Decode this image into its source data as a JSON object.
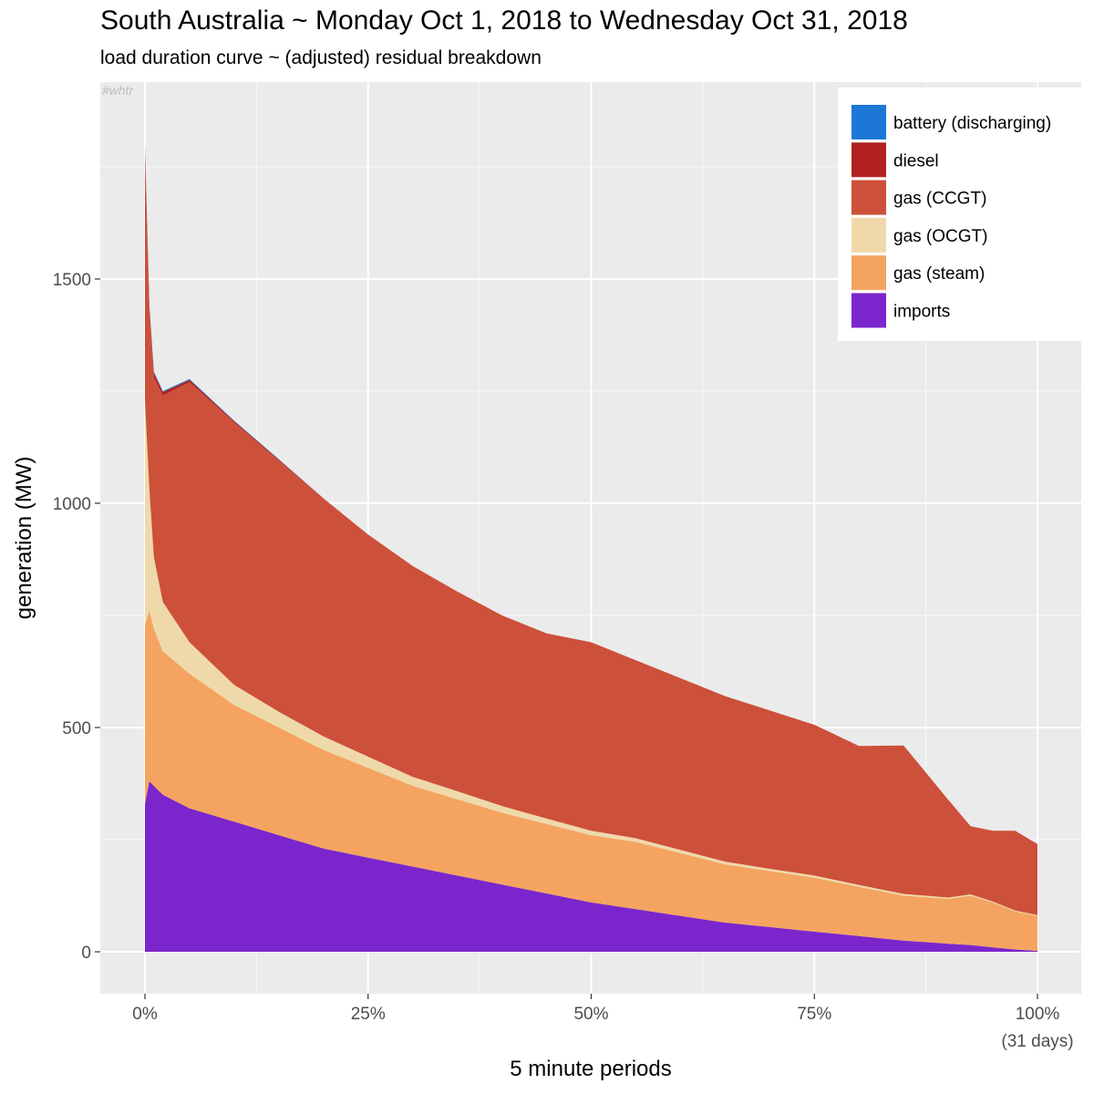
{
  "header": {
    "title": "South Australia ~ Monday Oct 1, 2018 to Wednesday Oct 31, 2018",
    "subtitle": "load duration curve ~ (adjusted) residual breakdown"
  },
  "watermark": "#whtr",
  "chart_data": {
    "type": "area",
    "stacked": true,
    "xlabel": "5 minute periods",
    "ylabel": "generation (MW)",
    "xlim": [
      0,
      1
    ],
    "ylim": [
      -70,
      1880
    ],
    "x_ticks": [
      {
        "value": 0,
        "label": "0%"
      },
      {
        "value": 0.25,
        "label": "25%"
      },
      {
        "value": 0.5,
        "label": "50%"
      },
      {
        "value": 0.75,
        "label": "75%"
      },
      {
        "value": 1,
        "label": "100%",
        "label2": "(31 days)"
      }
    ],
    "y_ticks": [
      {
        "value": 0,
        "label": "0"
      },
      {
        "value": 500,
        "label": "500"
      },
      {
        "value": 1000,
        "label": "1000"
      },
      {
        "value": 1500,
        "label": "1500"
      }
    ],
    "grid": true,
    "legend_position": "top-right",
    "x": [
      0,
      0.005,
      0.01,
      0.02,
      0.05,
      0.1,
      0.15,
      0.2,
      0.25,
      0.3,
      0.35,
      0.4,
      0.45,
      0.5,
      0.55,
      0.6,
      0.65,
      0.7,
      0.75,
      0.8,
      0.85,
      0.9,
      0.925,
      0.95,
      0.975,
      1.0
    ],
    "series": [
      {
        "name": "imports",
        "color": "#7b26cc",
        "values": [
          330,
          380,
          370,
          350,
          320,
          290,
          260,
          230,
          210,
          190,
          170,
          150,
          130,
          110,
          95,
          80,
          65,
          55,
          45,
          35,
          25,
          18,
          15,
          10,
          5,
          2
        ]
      },
      {
        "name": "gas (steam)",
        "color": "#f4a460",
        "values": [
          400,
          380,
          350,
          320,
          300,
          260,
          240,
          220,
          200,
          180,
          170,
          160,
          155,
          150,
          150,
          140,
          130,
          125,
          120,
          110,
          100,
          100,
          110,
          100,
          85,
          78
        ]
      },
      {
        "name": "gas (OCGT)",
        "color": "#efd9aa",
        "values": [
          500,
          270,
          160,
          110,
          70,
          45,
          35,
          30,
          25,
          20,
          18,
          15,
          12,
          10,
          8,
          7,
          6,
          5,
          5,
          4,
          4,
          3,
          3,
          2,
          2,
          2
        ]
      },
      {
        "name": "gas (CCGT)",
        "color": "#cd503a",
        "values": [
          530,
          390,
          400,
          460,
          580,
          585,
          560,
          530,
          495,
          470,
          445,
          425,
          413,
          420,
          397,
          383,
          369,
          353,
          336,
          310,
          331,
          218,
          152,
          158,
          178,
          158
        ]
      },
      {
        "name": "diesel",
        "color": "#b22222",
        "values": [
          30,
          15,
          10,
          8,
          5,
          3,
          2,
          1,
          0,
          0,
          0,
          0,
          0,
          0,
          0,
          0,
          0,
          0,
          0,
          0,
          0,
          0,
          0,
          0,
          0,
          0
        ]
      },
      {
        "name": "battery (discharging)",
        "color": "#1c78d4",
        "values": [
          10,
          5,
          3,
          2,
          2,
          1,
          1,
          0,
          0,
          0,
          0,
          0,
          0,
          0,
          0,
          0,
          0,
          0,
          0,
          0,
          0,
          0,
          0,
          0,
          0,
          0
        ]
      }
    ],
    "legend_order": [
      "battery (discharging)",
      "diesel",
      "gas (CCGT)",
      "gas (OCGT)",
      "gas (steam)",
      "imports"
    ]
  }
}
